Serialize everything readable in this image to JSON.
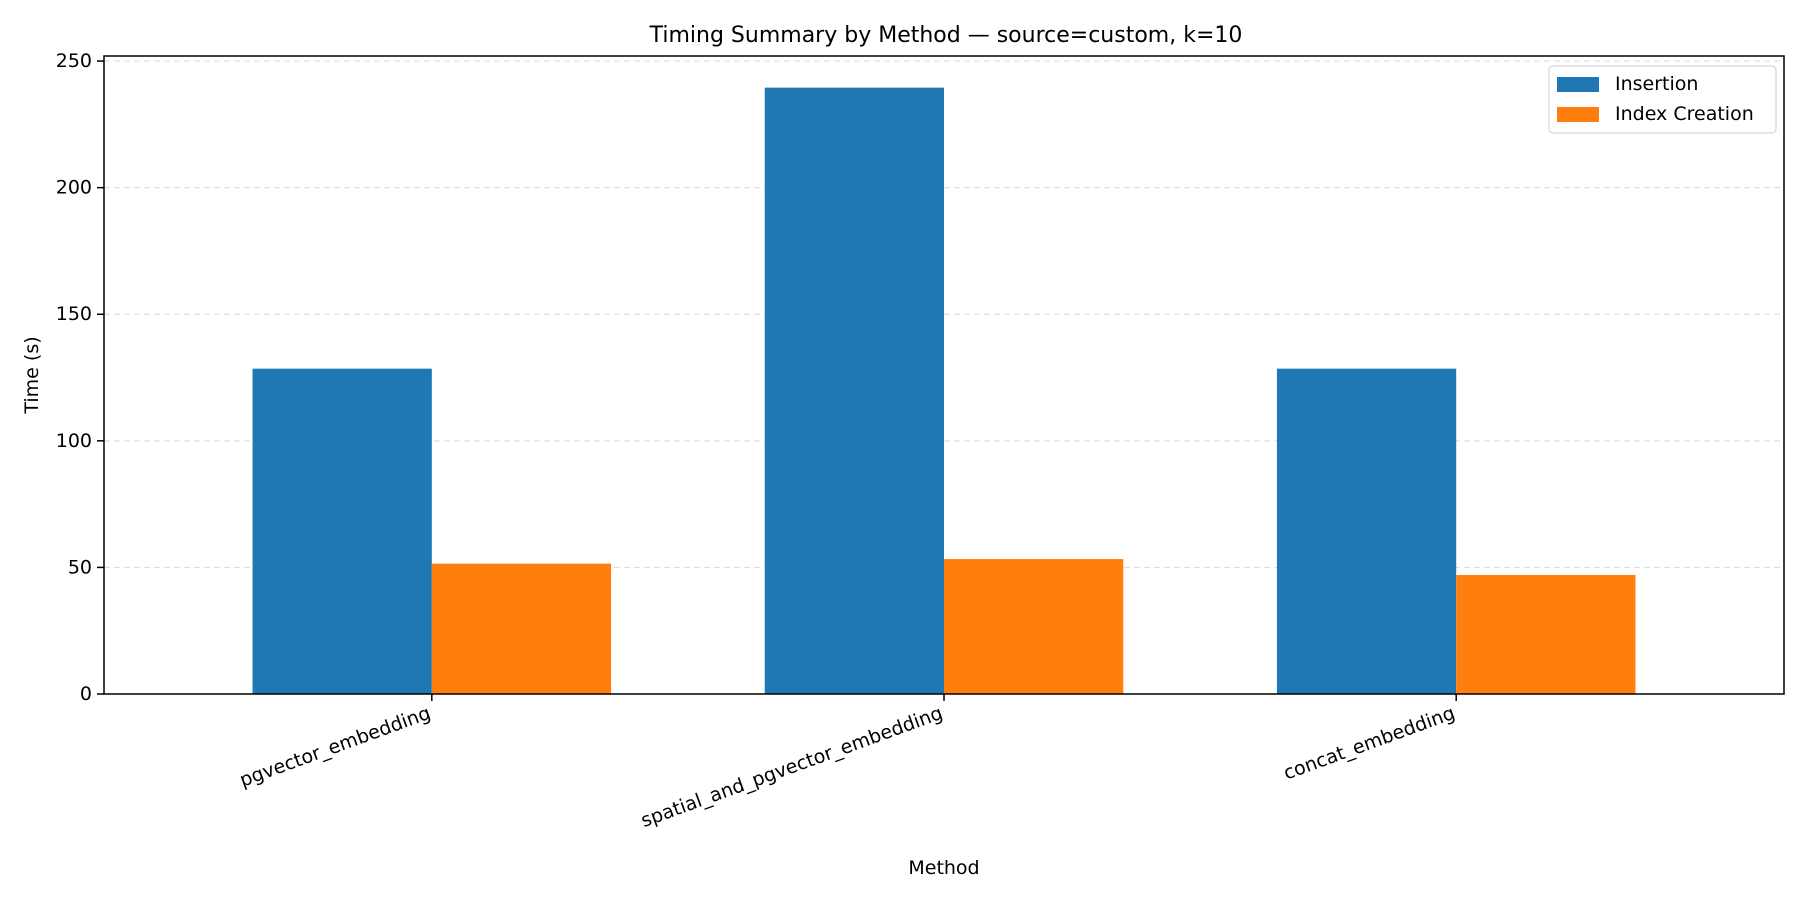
{
  "chart_data": {
    "type": "bar",
    "title": "Timing Summary by Method — source=custom, k=10",
    "xlabel": "Method",
    "ylabel": "Time (s)",
    "categories": [
      "pgvector_embedding",
      "spatial_and_pgvector_embedding",
      "concat_embedding"
    ],
    "series": [
      {
        "name": "Insertion",
        "color": "#1f77b4",
        "values": [
          128.5,
          239.5,
          128.5
        ]
      },
      {
        "name": "Index Creation",
        "color": "#ff7f0e",
        "values": [
          51.5,
          53.3,
          47.0
        ]
      }
    ],
    "ylim": [
      0,
      252
    ],
    "yticks": [
      0,
      50,
      100,
      150,
      200,
      250
    ],
    "grid": true,
    "legend_position": "top-right"
  }
}
